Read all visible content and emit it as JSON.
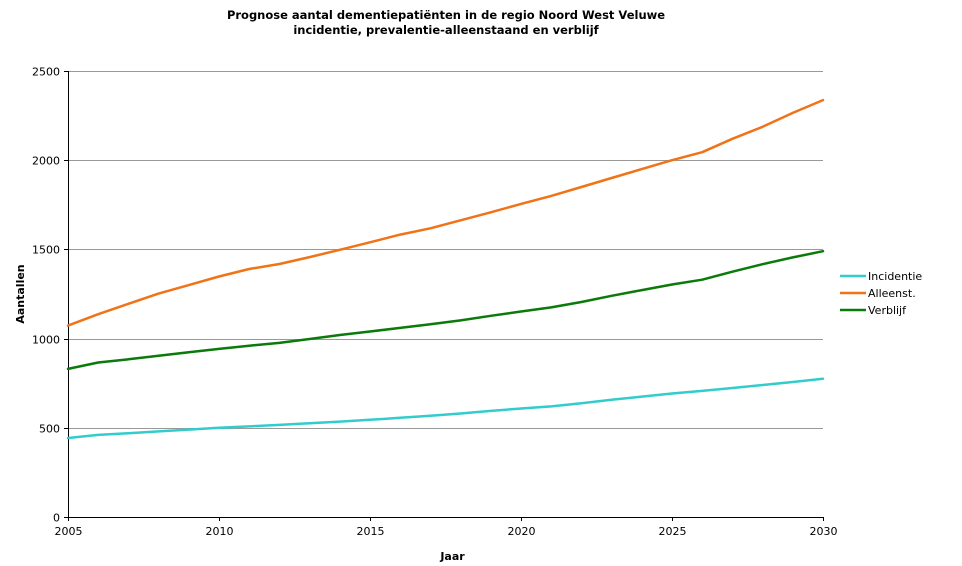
{
  "chart_data": {
    "type": "line",
    "title": "Prognose aantal dementiepatiënten in de regio Noord West Veluwe",
    "subtitle": "incidentie, prevalentie-alleenstaand en verblijf",
    "xlabel": "Jaar",
    "ylabel": "Aantallen",
    "xlim": [
      2005,
      2030
    ],
    "ylim": [
      0,
      2500
    ],
    "x_ticks": [
      "2005",
      "2010",
      "2015",
      "2020",
      "2025",
      "2030"
    ],
    "y_ticks": [
      "0",
      "500",
      "1000",
      "1500",
      "2000",
      "2500"
    ],
    "grid": "horizontal",
    "legend_position": "right",
    "x": [
      2005,
      2006,
      2007,
      2008,
      2009,
      2010,
      2011,
      2012,
      2013,
      2014,
      2015,
      2016,
      2017,
      2018,
      2019,
      2020,
      2021,
      2022,
      2023,
      2024,
      2025,
      2026,
      2027,
      2028,
      2029,
      2030
    ],
    "series": [
      {
        "name": "Incidentie",
        "color": "#33cccc",
        "values": [
          443,
          460,
          470,
          480,
          490,
          500,
          508,
          516,
          525,
          535,
          545,
          556,
          567,
          580,
          595,
          608,
          620,
          638,
          657,
          675,
          692,
          707,
          723,
          740,
          757,
          775
        ]
      },
      {
        "name": "Alleenst.",
        "color": "#f07318",
        "values": [
          1073,
          1137,
          1195,
          1252,
          1300,
          1348,
          1390,
          1418,
          1457,
          1498,
          1540,
          1583,
          1618,
          1663,
          1708,
          1755,
          1800,
          1850,
          1900,
          1950,
          2000,
          2045,
          2120,
          2187,
          2265,
          2337
        ]
      },
      {
        "name": "Verblijf",
        "color": "#0a7a0a",
        "values": [
          830,
          866,
          884,
          904,
          923,
          942,
          960,
          976,
          998,
          1020,
          1040,
          1060,
          1080,
          1102,
          1128,
          1152,
          1175,
          1205,
          1240,
          1272,
          1303,
          1330,
          1375,
          1417,
          1455,
          1490
        ]
      }
    ]
  }
}
